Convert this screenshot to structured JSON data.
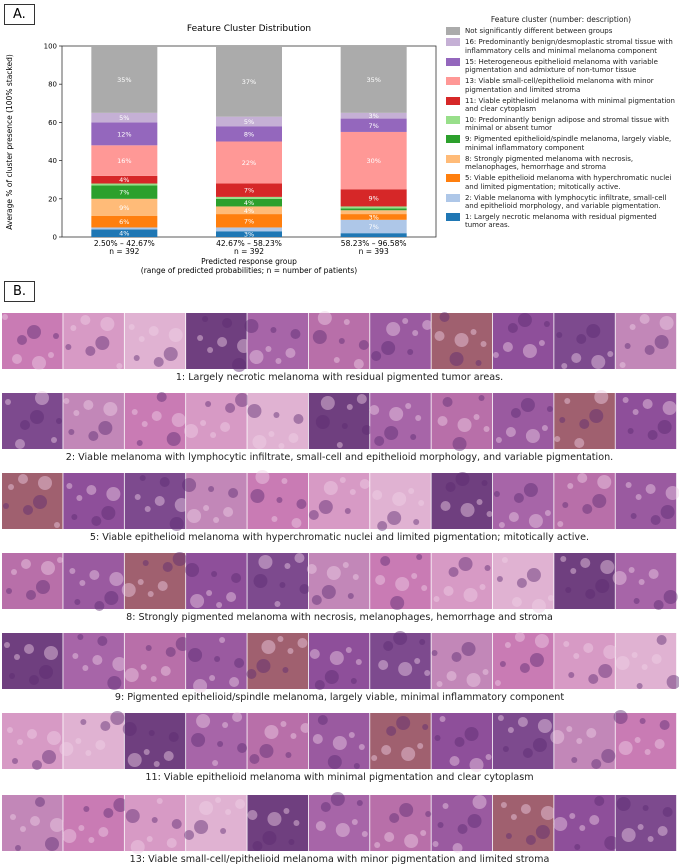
{
  "chart_data": {
    "type": "stacked_bar",
    "panel_label": "A.",
    "title": "Feature Cluster Distribution",
    "y_label": "Average % of cluster presence (100% stacked)",
    "x_label": "Predicted response group",
    "x_sublabel": "(range of predicted probabilities; n = number of patients)",
    "categories": [
      "2.50% – 42.67%",
      "42.67% – 58.23%",
      "58.23% – 96.58%"
    ],
    "n_labels": [
      "n = 392",
      "n = 392",
      "n = 393"
    ],
    "ylim": [
      0,
      100
    ],
    "yticks": [
      0,
      20,
      40,
      60,
      80,
      100
    ],
    "legend_title": "Feature cluster (number: description)",
    "series": [
      {
        "name": "1: Largely necrotic melanoma with residual  pigmented tumor areas.",
        "color": "#1f77b4",
        "values": [
          4,
          3,
          2
        ],
        "value_labels": [
          "4%",
          "3%",
          null
        ]
      },
      {
        "name": "2: Viable melanoma with lymphocytic infiltrate, small-cell and epithelioid morphology, and variable pigmentation.",
        "color": "#aec7e8",
        "values": [
          1,
          2,
          7
        ],
        "value_labels": [
          null,
          null,
          "7%"
        ]
      },
      {
        "name": "5: Viable epithelioid melanoma with hyperchromatic nuclei and limited pigmentation; mitotically active.",
        "color": "#ff7f0e",
        "values": [
          6,
          7,
          3
        ],
        "value_labels": [
          "6%",
          "7%",
          "3%"
        ]
      },
      {
        "name": "8: Strongly pigmented melanoma with necrosis, melanophages, hemorrhage and stroma",
        "color": "#ffbb78",
        "values": [
          9,
          4,
          2
        ],
        "value_labels": [
          "9%",
          "4%",
          null
        ]
      },
      {
        "name": "9: Pigmented epithelioid/spindle melanoma,  largely viable, minimal inflammatory component",
        "color": "#2ca02c",
        "values": [
          7,
          4,
          1
        ],
        "value_labels": [
          "7%",
          "4%",
          null
        ]
      },
      {
        "name": "10: Predominantly benign adipose and  stromal tissue with minimal or absent tumor",
        "color": "#98df8a",
        "values": [
          1,
          1,
          1
        ],
        "value_labels": [
          null,
          null,
          null
        ]
      },
      {
        "name": "11: Viable epithelioid melanoma with  minimal pigmentation and clear cytoplasm",
        "color": "#d62728",
        "values": [
          4,
          7,
          9
        ],
        "value_labels": [
          "4%",
          "7%",
          "9%"
        ]
      },
      {
        "name": "13: Viable small-cell/epithelioid melanoma  with minor pigmentation and limited stroma",
        "color": "#ff9896",
        "values": [
          16,
          22,
          30
        ],
        "value_labels": [
          "16%",
          "22%",
          "30%"
        ]
      },
      {
        "name": "15: Heterogeneous epithelioid melanoma with  variable pigmentation and admixture of non-tumor tissue",
        "color": "#9467bd",
        "values": [
          12,
          8,
          7
        ],
        "value_labels": [
          "12%",
          "8%",
          "7%"
        ]
      },
      {
        "name": "16: Predominantly benign/desmoplastic stromal tissue with inflammatory cells and minimal melanoma component",
        "color": "#c5b0d5",
        "values": [
          5,
          5,
          3
        ],
        "value_labels": [
          "5%",
          "5%",
          "3%"
        ]
      },
      {
        "name": "Not significantly different between groups",
        "color": "#ababab",
        "values": [
          35,
          37,
          35
        ],
        "value_labels": [
          "35%",
          "37%",
          "35%"
        ]
      }
    ]
  },
  "panel_b": {
    "label": "B.",
    "strips": [
      {
        "caption": "1: Largely necrotic melanoma with residual pigmented tumor areas."
      },
      {
        "caption": "2: Viable melanoma with lymphocytic infiltrate, small-cell and epithelioid morphology, and variable pigmentation."
      },
      {
        "caption": "5: Viable epithelioid melanoma with hyperchromatic nuclei and limited pigmentation; mitotically active."
      },
      {
        "caption": "8: Strongly pigmented melanoma with necrosis, melanophages, hemorrhage and stroma"
      },
      {
        "caption": "9: Pigmented epithelioid/spindle melanoma, largely viable, minimal inflammatory component"
      },
      {
        "caption": "11: Viable epithelioid melanoma with minimal pigmentation and clear cytoplasm"
      },
      {
        "caption": "13: Viable small-cell/epithelioid melanoma with minor pigmentation and limited stroma"
      }
    ]
  }
}
